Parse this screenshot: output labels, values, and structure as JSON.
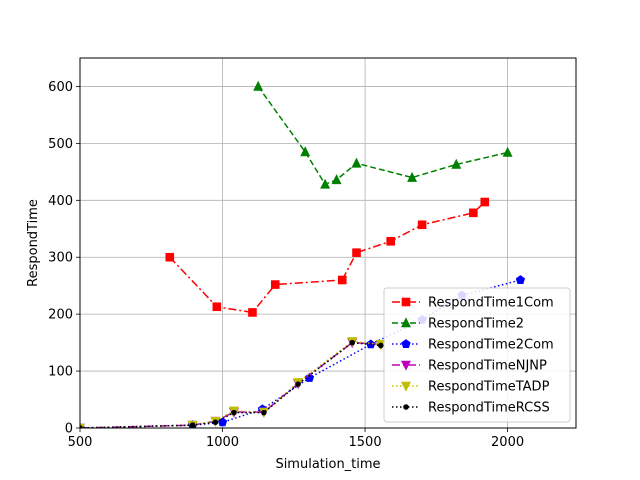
{
  "chart_data": {
    "type": "line",
    "title": "",
    "xlabel": "Simulation_time",
    "ylabel": "RespondTime",
    "xlim": [
      500,
      2240
    ],
    "ylim": [
      0,
      650
    ],
    "xticks": [
      500,
      1000,
      1500,
      2000
    ],
    "yticks": [
      0,
      100,
      200,
      300,
      400,
      500,
      600
    ],
    "grid": true,
    "legend_position": "lower-right",
    "series": [
      {
        "name": "RespondTime1Com",
        "color": "#ff0000",
        "line": "dashdot",
        "marker": "square",
        "x": [
          815,
          980,
          1105,
          1185,
          1420,
          1470,
          1590,
          1700,
          1880,
          1920
        ],
        "y": [
          300,
          213,
          203,
          252,
          260,
          308,
          328,
          357,
          378,
          397
        ]
      },
      {
        "name": "RespondTime2",
        "color": "#008000",
        "line": "dashed",
        "marker": "triangle-up",
        "x": [
          1125,
          1290,
          1360,
          1400,
          1470,
          1665,
          1820,
          2000
        ],
        "y": [
          600,
          485,
          428,
          436,
          465,
          440,
          463,
          484
        ]
      },
      {
        "name": "RespondTime2Com",
        "color": "#0000ff",
        "line": "dotted",
        "marker": "pentagon",
        "x": [
          500,
          895,
          1000,
          1140,
          1305,
          1520,
          1700,
          1840,
          2045
        ],
        "y": [
          0,
          5,
          10,
          33,
          88,
          147,
          190,
          233,
          260
        ]
      },
      {
        "name": "RespondTimeNJNP",
        "color": "#bf00bf",
        "line": "dashdot",
        "marker": "triangle-down",
        "x": [
          500,
          895,
          975,
          1040,
          1145,
          1265,
          1455,
          1555
        ],
        "y": [
          0,
          5,
          12,
          28,
          28,
          78,
          150,
          147
        ]
      },
      {
        "name": "RespondTimeTADP",
        "color": "#bfbf00",
        "line": "dotted",
        "marker": "triangle-down",
        "x": [
          500,
          895,
          975,
          1040,
          1145,
          1265,
          1455,
          1555
        ],
        "y": [
          0,
          5,
          12,
          30,
          28,
          80,
          152,
          147
        ]
      },
      {
        "name": "RespondTimeRCSS",
        "color": "#000000",
        "line": "dotted",
        "marker": "circle",
        "x": [
          500,
          895,
          975,
          1040,
          1145,
          1265,
          1455,
          1555
        ],
        "y": [
          0,
          5,
          10,
          27,
          27,
          77,
          150,
          145
        ]
      }
    ]
  }
}
